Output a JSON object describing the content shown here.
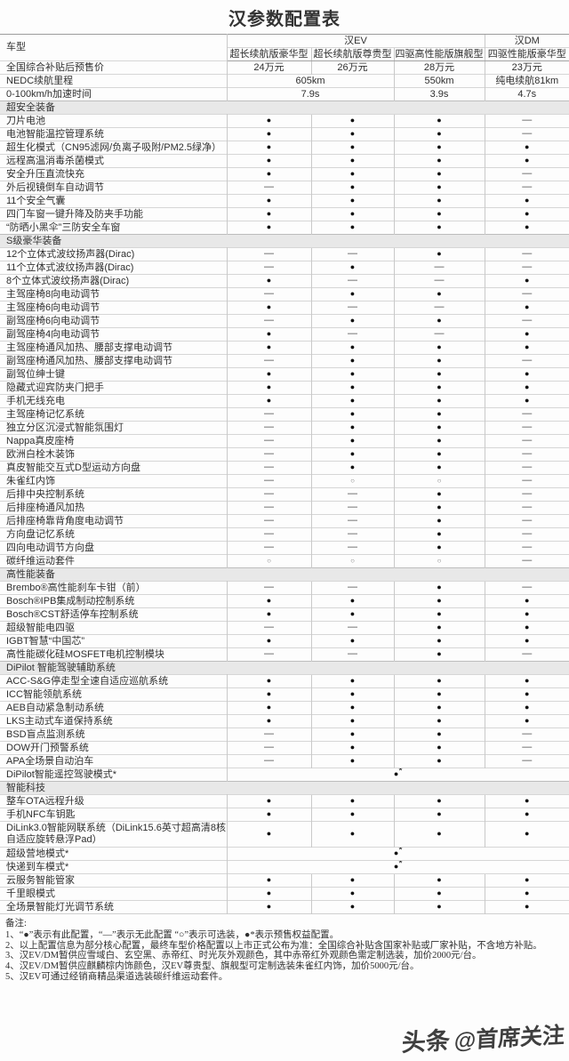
{
  "title": "汉参数配置表",
  "header": {
    "model_label": "车型",
    "groups": [
      {
        "label": "汉EV",
        "colspan": 3
      },
      {
        "label": "汉DM",
        "colspan": 1
      }
    ],
    "trims": [
      "超长续航版豪华型",
      "超长续航版尊贵型",
      "四驱高性能版旗舰型",
      "四驱性能版豪华型"
    ]
  },
  "spec_rows": [
    {
      "label": "全国综合补贴后预售价",
      "cells": [
        {
          "text": "24万元",
          "span": 1
        },
        {
          "text": "26万元",
          "span": 1
        },
        {
          "text": "28万元",
          "span": 1
        },
        {
          "text": "23万元",
          "span": 1
        }
      ]
    },
    {
      "label": "NEDC续航里程",
      "cells": [
        {
          "text": "605km",
          "span": 2
        },
        {
          "text": "550km",
          "span": 1
        },
        {
          "text": "纯电续航81km",
          "span": 1
        }
      ]
    },
    {
      "label": "0-100km/h加速时间",
      "cells": [
        {
          "text": "7.9s",
          "span": 2
        },
        {
          "text": "3.9s",
          "span": 1
        },
        {
          "text": "4.7s",
          "span": 1
        }
      ]
    }
  ],
  "legend_symbols": {
    "present": "●",
    "absent": "—",
    "optional": "○",
    "presale_benefit": "●*"
  },
  "sections": [
    {
      "title": "超安全装备",
      "rows": [
        {
          "label": "刀片电池",
          "values": [
            "●",
            "●",
            "●",
            "—"
          ]
        },
        {
          "label": "电池智能温控管理系统",
          "values": [
            "●",
            "●",
            "●",
            "—"
          ]
        },
        {
          "label": "超生化模式（CN95滤网/负离子吸附/PM2.5绿净）",
          "values": [
            "●",
            "●",
            "●",
            "●"
          ]
        },
        {
          "label": "远程高温消毒杀菌模式",
          "values": [
            "●",
            "●",
            "●",
            "●"
          ]
        },
        {
          "label": "安全升压直流快充",
          "values": [
            "●",
            "●",
            "●",
            "—"
          ]
        },
        {
          "label": "外后视镜倒车自动调节",
          "values": [
            "—",
            "●",
            "●",
            "—"
          ]
        },
        {
          "label": "11个安全气囊",
          "values": [
            "●",
            "●",
            "●",
            "●"
          ]
        },
        {
          "label": "四门车窗一键升降及防夹手功能",
          "values": [
            "●",
            "●",
            "●",
            "●"
          ]
        },
        {
          "label": "“防晒小黑伞”三防安全车窗",
          "values": [
            "●",
            "●",
            "●",
            "●"
          ]
        }
      ]
    },
    {
      "title": "S级豪华装备",
      "rows": [
        {
          "label": "12个立体式波纹扬声器(Dirac)",
          "values": [
            "—",
            "—",
            "●",
            "—"
          ]
        },
        {
          "label": "11个立体式波纹扬声器(Dirac)",
          "values": [
            "—",
            "●",
            "—",
            "—"
          ]
        },
        {
          "label": "8个立体式波纹扬声器(Dirac)",
          "values": [
            "●",
            "—",
            "—",
            "●"
          ]
        },
        {
          "label": "主驾座椅8向电动调节",
          "values": [
            "—",
            "●",
            "●",
            "—"
          ]
        },
        {
          "label": "主驾座椅6向电动调节",
          "values": [
            "●",
            "—",
            "—",
            "●"
          ]
        },
        {
          "label": "副驾座椅6向电动调节",
          "values": [
            "—",
            "●",
            "●",
            "—"
          ]
        },
        {
          "label": "副驾座椅4向电动调节",
          "values": [
            "●",
            "—",
            "—",
            "●"
          ]
        },
        {
          "label": "主驾座椅通风加热、腰部支撑电动调节",
          "values": [
            "●",
            "●",
            "●",
            "●"
          ]
        },
        {
          "label": "副驾座椅通风加热、腰部支撑电动调节",
          "values": [
            "—",
            "●",
            "●",
            "—"
          ]
        },
        {
          "label": "副驾位绅士键",
          "values": [
            "●",
            "●",
            "●",
            "●"
          ]
        },
        {
          "label": "隐藏式迎宾防夹门把手",
          "values": [
            "●",
            "●",
            "●",
            "●"
          ]
        },
        {
          "label": "手机无线充电",
          "values": [
            "●",
            "●",
            "●",
            "●"
          ]
        },
        {
          "label": "主驾座椅记忆系统",
          "values": [
            "—",
            "●",
            "●",
            "—"
          ]
        },
        {
          "label": "独立分区沉浸式智能氛围灯",
          "values": [
            "—",
            "●",
            "●",
            "—"
          ]
        },
        {
          "label": "Nappa真皮座椅",
          "values": [
            "—",
            "●",
            "●",
            "—"
          ]
        },
        {
          "label": "欧洲白栓木装饰",
          "values": [
            "—",
            "●",
            "●",
            "—"
          ]
        },
        {
          "label": "真皮智能交互式D型运动方向盘",
          "values": [
            "—",
            "●",
            "●",
            "—"
          ]
        },
        {
          "label": "朱雀红内饰",
          "values": [
            "—",
            "○",
            "○",
            "—"
          ]
        },
        {
          "label": "后排中央控制系统",
          "values": [
            "—",
            "—",
            "●",
            "—"
          ]
        },
        {
          "label": "后排座椅通风加热",
          "values": [
            "—",
            "—",
            "●",
            "—"
          ]
        },
        {
          "label": "后排座椅靠背角度电动调节",
          "values": [
            "—",
            "—",
            "●",
            "—"
          ]
        },
        {
          "label": "方向盘记忆系统",
          "values": [
            "—",
            "—",
            "●",
            "—"
          ]
        },
        {
          "label": "四向电动调节方向盘",
          "values": [
            "—",
            "—",
            "●",
            "—"
          ]
        },
        {
          "label": "碳纤维运动套件",
          "values": [
            "○",
            "○",
            "○",
            "—"
          ]
        }
      ]
    },
    {
      "title": "高性能装备",
      "rows": [
        {
          "label": "Brembo®高性能刹车卡钳（前）",
          "values": [
            "—",
            "—",
            "●",
            "—"
          ]
        },
        {
          "label": "Bosch®IPB集成制动控制系统",
          "values": [
            "●",
            "●",
            "●",
            "●"
          ]
        },
        {
          "label": "Bosch®CST舒适停车控制系统",
          "values": [
            "●",
            "●",
            "●",
            "●"
          ]
        },
        {
          "label": "超级智能电四驱",
          "values": [
            "—",
            "—",
            "●",
            "●"
          ]
        },
        {
          "label": "IGBT智慧“中国芯”",
          "values": [
            "●",
            "●",
            "●",
            "●"
          ]
        },
        {
          "label": "高性能碳化硅MOSFET电机控制模块",
          "values": [
            "—",
            "—",
            "●",
            "—"
          ]
        }
      ]
    },
    {
      "title": "DiPilot 智能驾驶辅助系统",
      "rows": [
        {
          "label": "ACC-S&G停走型全速自适应巡航系统",
          "values": [
            "●",
            "●",
            "●",
            "●"
          ]
        },
        {
          "label": "ICC智能领航系统",
          "values": [
            "●",
            "●",
            "●",
            "●"
          ]
        },
        {
          "label": "AEB自动紧急制动系统",
          "values": [
            "●",
            "●",
            "●",
            "●"
          ]
        },
        {
          "label": "LKS主动式车道保持系统",
          "values": [
            "●",
            "●",
            "●",
            "●"
          ]
        },
        {
          "label": "BSD盲点监测系统",
          "values": [
            "—",
            "●",
            "●",
            "—"
          ]
        },
        {
          "label": "DOW开门预警系统",
          "values": [
            "—",
            "●",
            "●",
            "—"
          ]
        },
        {
          "label": "APA全场景自动泊车",
          "values": [
            "—",
            "●",
            "●",
            "—"
          ]
        },
        {
          "label": "DiPilot智能遥控驾驶模式*",
          "merged": "●*"
        }
      ]
    },
    {
      "title": "智能科技",
      "rows": [
        {
          "label": "整车OTA远程升级",
          "values": [
            "●",
            "●",
            "●",
            "●"
          ]
        },
        {
          "label": "手机NFC车钥匙",
          "values": [
            "●",
            "●",
            "●",
            "●"
          ]
        },
        {
          "label": "DiLink3.0智能网联系统（DiLink15.6英寸超高清8核自适应旋转悬浮Pad）",
          "values": [
            "●",
            "●",
            "●",
            "●"
          ],
          "wrap": true
        },
        {
          "label": "超级营地模式*",
          "merged": "●*"
        },
        {
          "label": "快递到车模式*",
          "merged": "●*"
        },
        {
          "label": "云服务智能管家",
          "values": [
            "●",
            "●",
            "●",
            "●"
          ]
        },
        {
          "label": "千里眼模式",
          "values": [
            "●",
            "●",
            "●",
            "●"
          ]
        },
        {
          "label": "全场景智能灯光调节系统",
          "values": [
            "●",
            "●",
            "●",
            "●"
          ]
        }
      ]
    }
  ],
  "notes": {
    "title": "备注:",
    "items": [
      "1、“●”表示有此配置，“—”表示无此配置 “○”表示可选装，●*表示预售权益配置。",
      "2、以上配置信息为部分核心配置，最终车型价格配置以上市正式公布为准：全国综合补贴含国家补贴或厂家补贴，不含地方补贴。",
      "3、汉EV/DM暂供应雪域白、玄空黑、赤帝红、时光灰外观颜色，其中赤帝红外观颜色需定制选装，加价2000元/台。",
      "4、汉EV/DM暂供应麒麟棕内饰颜色，汉EV尊贵型、旗舰型可定制选装朱雀红内饰，加价5000元/台。",
      "5、汉EV可通过经销商精品渠道选装碳纤维运动套件。"
    ]
  },
  "watermark": {
    "part1": "头条",
    "part2": "@首席关注"
  },
  "colors": {
    "section_bg": "#e8e8e8",
    "border_light": "#d6d6d6",
    "border_dark": "#9c9c9c",
    "text": "#2e2e2e"
  }
}
